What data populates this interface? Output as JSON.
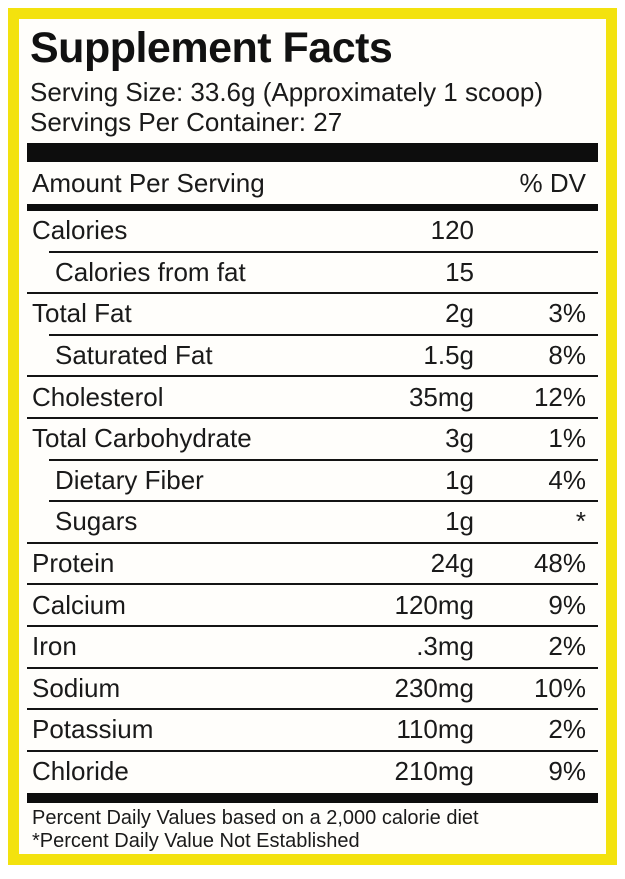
{
  "colors": {
    "border_yellow": "#f3e20e",
    "bar_black": "#0d0d0d",
    "text_black": "#1a1a1a"
  },
  "header": {
    "title": "Supplement Facts",
    "serving_size": "Serving Size: 33.6g (Approximately 1 scoop)",
    "servings_per_container": "Servings Per Container: 27",
    "amount_per_serving_label": "Amount Per Serving",
    "dv_label": "% DV"
  },
  "rows": [
    {
      "label": "Calories",
      "amount": "120",
      "dv": "",
      "indent": false
    },
    {
      "label": "Calories from fat",
      "amount": "15",
      "dv": "",
      "indent": true
    },
    {
      "label": "Total Fat",
      "amount": "2g",
      "dv": "3%",
      "indent": false
    },
    {
      "label": "Saturated Fat",
      "amount": "1.5g",
      "dv": "8%",
      "indent": true
    },
    {
      "label": "Cholesterol",
      "amount": "35mg",
      "dv": "12%",
      "indent": false
    },
    {
      "label": "Total Carbohydrate",
      "amount": "3g",
      "dv": "1%",
      "indent": false
    },
    {
      "label": "Dietary Fiber",
      "amount": "1g",
      "dv": "4%",
      "indent": true
    },
    {
      "label": "Sugars",
      "amount": "1g",
      "dv": "*",
      "indent": true
    },
    {
      "label": "Protein",
      "amount": "24g",
      "dv": "48%",
      "indent": false
    },
    {
      "label": "Calcium",
      "amount": "120mg",
      "dv": "9%",
      "indent": false
    },
    {
      "label": "Iron",
      "amount": ".3mg",
      "dv": "2%",
      "indent": false
    },
    {
      "label": "Sodium",
      "amount": "230mg",
      "dv": "10%",
      "indent": false
    },
    {
      "label": "Potassium",
      "amount": "110mg",
      "dv": "2%",
      "indent": false
    },
    {
      "label": "Chloride",
      "amount": "210mg",
      "dv": "9%",
      "indent": false
    }
  ],
  "footer": {
    "line1": "Percent Daily Values based on a 2,000 calorie diet",
    "line2": "*Percent Daily Value Not Established"
  }
}
